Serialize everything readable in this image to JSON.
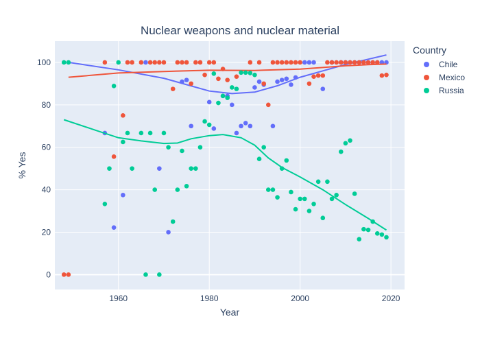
{
  "chart_data": {
    "type": "scatter",
    "title": "Nuclear weapons and nuclear material",
    "xlabel": "Year",
    "ylabel": "% Yes",
    "xlim": [
      1946,
      2023
    ],
    "ylim": [
      -7,
      110
    ],
    "xticks": [
      1960,
      1980,
      2000,
      2020
    ],
    "yticks": [
      0,
      20,
      40,
      60,
      80,
      100
    ],
    "grid": true,
    "legend": {
      "title": "Country",
      "placement": "top-right"
    },
    "series": [
      {
        "name": "Chile",
        "color": "#636efa",
        "points": [
          [
            1957,
            66.7
          ],
          [
            1959,
            22.2
          ],
          [
            1961,
            37.5
          ],
          [
            1966,
            100
          ],
          [
            1969,
            50
          ],
          [
            1971,
            20
          ],
          [
            1974,
            90.9
          ],
          [
            1975,
            91.7
          ],
          [
            1976,
            70
          ],
          [
            1980,
            81.3
          ],
          [
            1981,
            68.8
          ],
          [
            1983,
            84.2
          ],
          [
            1984,
            84.2
          ],
          [
            1985,
            80
          ],
          [
            1986,
            66.7
          ],
          [
            1987,
            70
          ],
          [
            1988,
            71.4
          ],
          [
            1989,
            70
          ],
          [
            1990,
            88.2
          ],
          [
            1991,
            90.9
          ],
          [
            1992,
            89.5
          ],
          [
            1994,
            70
          ],
          [
            1995,
            90.9
          ],
          [
            1996,
            91.7
          ],
          [
            1997,
            92.3
          ],
          [
            1998,
            89.5
          ],
          [
            1999,
            92.9
          ],
          [
            2001,
            100
          ],
          [
            2002,
            100
          ],
          [
            2003,
            100
          ],
          [
            2005,
            87.5
          ],
          [
            2007,
            100
          ],
          [
            2009,
            100
          ],
          [
            2010,
            100
          ],
          [
            2011,
            100
          ],
          [
            2012,
            100
          ],
          [
            2013,
            100
          ],
          [
            2014,
            100
          ],
          [
            2015,
            100
          ],
          [
            2016,
            100
          ],
          [
            2017,
            100
          ],
          [
            2018,
            100
          ],
          [
            2019,
            100
          ]
        ],
        "trend": [
          [
            1949,
            100
          ],
          [
            1960,
            96.5
          ],
          [
            1970,
            92.5
          ],
          [
            1980,
            86.5
          ],
          [
            1985,
            85.3
          ],
          [
            1990,
            86
          ],
          [
            1995,
            89
          ],
          [
            2000,
            93
          ],
          [
            2005,
            96
          ],
          [
            2010,
            99
          ],
          [
            2015,
            101.5
          ],
          [
            2019,
            103.5
          ]
        ]
      },
      {
        "name": "Mexico",
        "color": "#ef553b",
        "points": [
          [
            1948,
            0
          ],
          [
            1949,
            0
          ],
          [
            1957,
            100
          ],
          [
            1959,
            55.6
          ],
          [
            1961,
            75
          ],
          [
            1962,
            100
          ],
          [
            1963,
            100
          ],
          [
            1965,
            100
          ],
          [
            1967,
            100
          ],
          [
            1968,
            100
          ],
          [
            1969,
            100
          ],
          [
            1970,
            100
          ],
          [
            1972,
            87.5
          ],
          [
            1973,
            100
          ],
          [
            1974,
            100
          ],
          [
            1975,
            100
          ],
          [
            1976,
            90
          ],
          [
            1977,
            100
          ],
          [
            1978,
            100
          ],
          [
            1979,
            94.1
          ],
          [
            1980,
            100
          ],
          [
            1981,
            100
          ],
          [
            1982,
            92.3
          ],
          [
            1983,
            96.9
          ],
          [
            1984,
            91.7
          ],
          [
            1986,
            93.3
          ],
          [
            1989,
            100
          ],
          [
            1991,
            100
          ],
          [
            1992,
            90
          ],
          [
            1993,
            80
          ],
          [
            1994,
            100
          ],
          [
            1995,
            100
          ],
          [
            1996,
            100
          ],
          [
            1997,
            100
          ],
          [
            1998,
            100
          ],
          [
            1999,
            100
          ],
          [
            2000,
            100
          ],
          [
            2002,
            90
          ],
          [
            2003,
            93.3
          ],
          [
            2004,
            93.8
          ],
          [
            2005,
            93.8
          ],
          [
            2006,
            100
          ],
          [
            2007,
            100
          ],
          [
            2008,
            100
          ],
          [
            2009,
            100
          ],
          [
            2010,
            100
          ],
          [
            2011,
            100
          ],
          [
            2012,
            100
          ],
          [
            2013,
            100
          ],
          [
            2014,
            100
          ],
          [
            2015,
            100
          ],
          [
            2016,
            100
          ],
          [
            2017,
            100
          ],
          [
            2018,
            93.8
          ],
          [
            2019,
            94.1
          ]
        ],
        "trend": [
          [
            1949,
            93
          ],
          [
            1960,
            95
          ],
          [
            1970,
            95.7
          ],
          [
            1980,
            96.3
          ],
          [
            1990,
            96.2
          ],
          [
            2000,
            96.8
          ],
          [
            2005,
            97.6
          ],
          [
            2010,
            98.4
          ],
          [
            2015,
            98.9
          ],
          [
            2019,
            99.2
          ]
        ]
      },
      {
        "name": "Russia",
        "color": "#00cc96",
        "points": [
          [
            1948,
            100
          ],
          [
            1949,
            100
          ],
          [
            1957,
            33.3
          ],
          [
            1958,
            50
          ],
          [
            1959,
            88.9
          ],
          [
            1960,
            100
          ],
          [
            1961,
            62.5
          ],
          [
            1962,
            66.7
          ],
          [
            1963,
            50
          ],
          [
            1965,
            66.7
          ],
          [
            1966,
            0
          ],
          [
            1967,
            66.7
          ],
          [
            1968,
            40
          ],
          [
            1969,
            0
          ],
          [
            1970,
            66.7
          ],
          [
            1971,
            60
          ],
          [
            1972,
            25
          ],
          [
            1973,
            40
          ],
          [
            1974,
            58.3
          ],
          [
            1975,
            41.7
          ],
          [
            1976,
            50
          ],
          [
            1977,
            50
          ],
          [
            1978,
            60
          ],
          [
            1979,
            72.2
          ],
          [
            1980,
            70.6
          ],
          [
            1981,
            94.7
          ],
          [
            1982,
            80.9
          ],
          [
            1983,
            84.2
          ],
          [
            1984,
            83.3
          ],
          [
            1985,
            88.2
          ],
          [
            1986,
            87.5
          ],
          [
            1987,
            95.2
          ],
          [
            1988,
            95.2
          ],
          [
            1989,
            95
          ],
          [
            1990,
            94.1
          ],
          [
            1991,
            54.5
          ],
          [
            1992,
            60
          ],
          [
            1993,
            40
          ],
          [
            1994,
            40
          ],
          [
            1995,
            36.4
          ],
          [
            1996,
            50
          ],
          [
            1997,
            53.8
          ],
          [
            1998,
            38.9
          ],
          [
            1999,
            30.8
          ],
          [
            2000,
            35.7
          ],
          [
            2001,
            35.7
          ],
          [
            2002,
            30
          ],
          [
            2003,
            33.3
          ],
          [
            2004,
            43.8
          ],
          [
            2005,
            26.7
          ],
          [
            2006,
            43.8
          ],
          [
            2007,
            35.7
          ],
          [
            2008,
            37.5
          ],
          [
            2009,
            57.9
          ],
          [
            2010,
            61.9
          ],
          [
            2011,
            63.2
          ],
          [
            2012,
            38.1
          ],
          [
            2013,
            16.7
          ],
          [
            2014,
            21.4
          ],
          [
            2015,
            21.1
          ],
          [
            2016,
            25
          ],
          [
            2017,
            19.4
          ],
          [
            2018,
            18.9
          ],
          [
            2019,
            17.6
          ]
        ],
        "trend": [
          [
            1948,
            73
          ],
          [
            1955,
            68
          ],
          [
            1960,
            64.5
          ],
          [
            1965,
            63
          ],
          [
            1970,
            61.8
          ],
          [
            1973,
            62
          ],
          [
            1976,
            64
          ],
          [
            1980,
            65.5
          ],
          [
            1983,
            66
          ],
          [
            1987,
            64.5
          ],
          [
            1990,
            61
          ],
          [
            1993,
            55
          ],
          [
            1996,
            50.5
          ],
          [
            2000,
            46
          ],
          [
            2005,
            40
          ],
          [
            2010,
            33
          ],
          [
            2015,
            26.5
          ],
          [
            2019,
            21
          ]
        ]
      }
    ]
  }
}
